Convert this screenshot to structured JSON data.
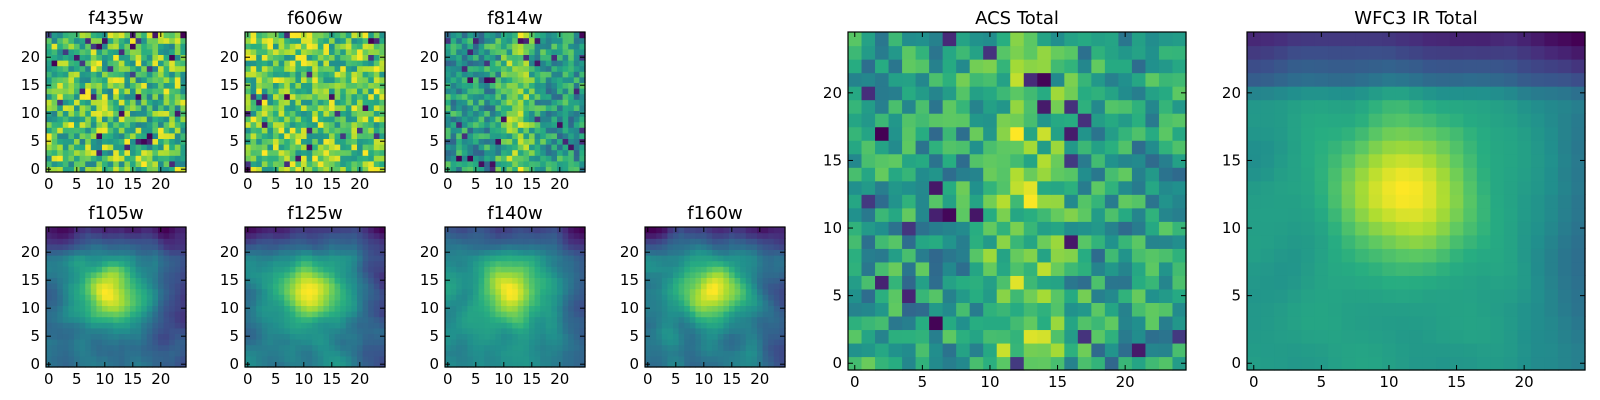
{
  "chart_data": [
    {
      "type": "heatmap",
      "title": "f435w",
      "colormap": "viridis",
      "image_size": [
        25,
        25
      ],
      "xlim": [
        0,
        24
      ],
      "ylim": [
        0,
        24
      ],
      "xticks": [
        0,
        5,
        10,
        15,
        20
      ],
      "yticks": [
        0,
        5,
        10,
        15,
        20
      ],
      "pattern": "noisy, no central source"
    },
    {
      "type": "heatmap",
      "title": "f606w",
      "colormap": "viridis",
      "image_size": [
        25,
        25
      ],
      "xlim": [
        0,
        24
      ],
      "ylim": [
        0,
        24
      ],
      "xticks": [
        0,
        5,
        10,
        15,
        20
      ],
      "yticks": [
        0,
        5,
        10,
        15,
        20
      ],
      "pattern": "noisy, bright overall"
    },
    {
      "type": "heatmap",
      "title": "f814w",
      "colormap": "viridis",
      "image_size": [
        25,
        25
      ],
      "xlim": [
        0,
        24
      ],
      "ylim": [
        0,
        24
      ],
      "xticks": [
        0,
        5,
        10,
        15,
        20
      ],
      "yticks": [
        0,
        5,
        10,
        15,
        20
      ],
      "pattern": "noisy, faint vertical streak near x=12"
    },
    {
      "type": "heatmap",
      "title": "ACS Total",
      "colormap": "viridis",
      "image_size": [
        25,
        25
      ],
      "xlim": [
        0,
        24
      ],
      "ylim": [
        0,
        24
      ],
      "xticks": [
        0,
        5,
        10,
        15,
        20
      ],
      "yticks": [
        0,
        5,
        10,
        15,
        20
      ],
      "pattern": "noisy, bright vertical band near x=12"
    },
    {
      "type": "heatmap",
      "title": "WFC3 IR Total",
      "colormap": "viridis",
      "image_size": [
        25,
        25
      ],
      "xlim": [
        0,
        24
      ],
      "ylim": [
        0,
        24
      ],
      "xticks": [
        0,
        5,
        10,
        15,
        20
      ],
      "yticks": [
        0,
        5,
        10,
        15,
        20
      ],
      "peak": [
        11,
        13
      ],
      "pattern": "smooth, bright source at center, dark top border"
    },
    {
      "type": "heatmap",
      "title": "f105w",
      "colormap": "viridis",
      "image_size": [
        25,
        25
      ],
      "xlim": [
        0,
        24
      ],
      "ylim": [
        0,
        24
      ],
      "xticks": [
        0,
        5,
        10,
        15,
        20
      ],
      "yticks": [
        0,
        5,
        10,
        15,
        20
      ],
      "peak": [
        11,
        13
      ],
      "pattern": "bright central source"
    },
    {
      "type": "heatmap",
      "title": "f125w",
      "colormap": "viridis",
      "image_size": [
        25,
        25
      ],
      "xlim": [
        0,
        24
      ],
      "ylim": [
        0,
        24
      ],
      "xticks": [
        0,
        5,
        10,
        15,
        20
      ],
      "yticks": [
        0,
        5,
        10,
        15,
        20
      ],
      "peak": [
        11,
        13
      ],
      "pattern": "bright central source"
    },
    {
      "type": "heatmap",
      "title": "f140w",
      "colormap": "viridis",
      "image_size": [
        25,
        25
      ],
      "xlim": [
        0,
        24
      ],
      "ylim": [
        0,
        24
      ],
      "xticks": [
        0,
        5,
        10,
        15,
        20
      ],
      "yticks": [
        0,
        5,
        10,
        15,
        20
      ],
      "peak": [
        11,
        13
      ],
      "pattern": "bright central source"
    },
    {
      "type": "heatmap",
      "title": "f160w",
      "colormap": "viridis",
      "image_size": [
        25,
        25
      ],
      "xlim": [
        0,
        24
      ],
      "ylim": [
        0,
        24
      ],
      "xticks": [
        0,
        5,
        10,
        15,
        20
      ],
      "yticks": [
        0,
        5,
        10,
        15,
        20
      ],
      "peak": [
        11,
        13
      ],
      "pattern": "bright central source"
    }
  ]
}
